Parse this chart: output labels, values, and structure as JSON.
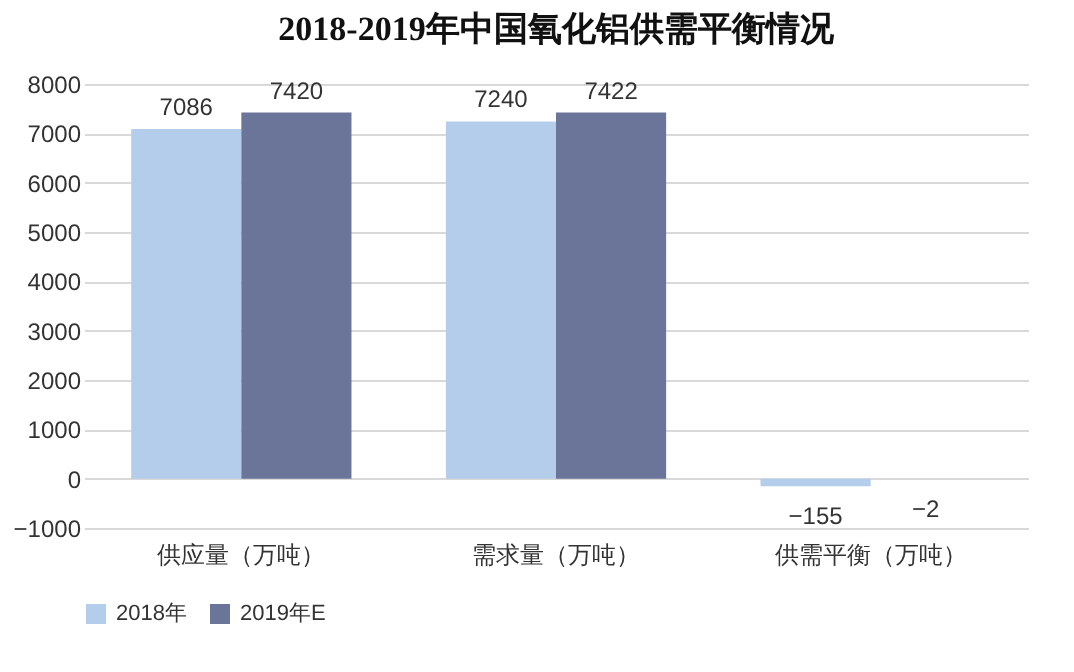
{
  "chart_data": {
    "type": "bar",
    "title": "2018-2019年中国氧化铝供需平衡情况",
    "categories": [
      "供应量（万吨）",
      "需求量（万吨）",
      "供需平衡（万吨）"
    ],
    "series": [
      {
        "name": "2018年",
        "color": "#b4cdea",
        "values": [
          7086,
          7240,
          -155
        ]
      },
      {
        "name": "2019年E",
        "color": "#6b7599",
        "values": [
          7420,
          7422,
          -2
        ]
      }
    ],
    "ylim": [
      -1000,
      8000
    ],
    "yticks": [
      -1000,
      0,
      1000,
      2000,
      3000,
      4000,
      5000,
      6000,
      7000,
      8000
    ],
    "grid": "y",
    "legend": "bottom",
    "data_labels": true
  }
}
